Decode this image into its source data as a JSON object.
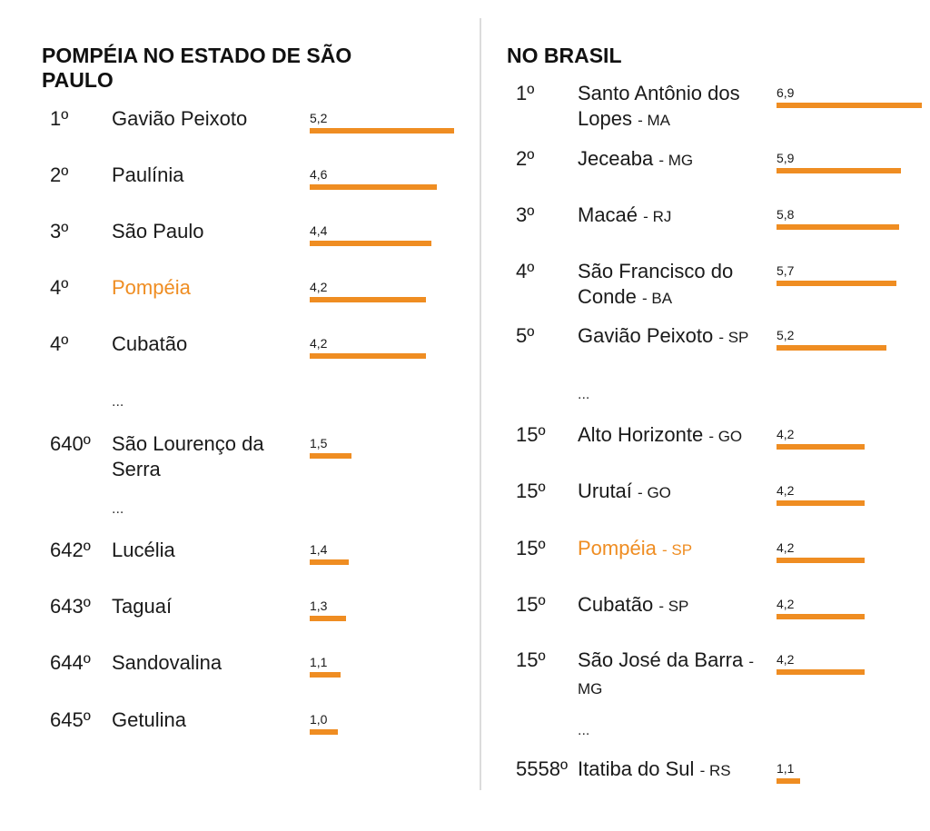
{
  "colors": {
    "bar": "#ef8d22",
    "highlight": "#ef8d22",
    "divider": "#dcdcdc"
  },
  "chart_data": [
    {
      "type": "bar",
      "title": "POMPÉIA NO ESTADO DE SÃO PAULO",
      "items": [
        {
          "rank": "1º",
          "name": "Gavião Peixoto",
          "value": 5.2,
          "label": "5,2",
          "highlight": false
        },
        {
          "rank": "2º",
          "name": "Paulínia",
          "value": 4.6,
          "label": "4,6",
          "highlight": false
        },
        {
          "rank": "3º",
          "name": "São Paulo",
          "value": 4.4,
          "label": "4,4",
          "highlight": false
        },
        {
          "rank": "4º",
          "name": "Pompéia",
          "value": 4.2,
          "label": "4,2",
          "highlight": true
        },
        {
          "rank": "4º",
          "name": "Cubatão",
          "value": 4.2,
          "label": "4,2",
          "highlight": false
        },
        {
          "separator": "..."
        },
        {
          "rank": "640º",
          "name": "São Lourenço da Serra",
          "value": 1.5,
          "label": "1,5",
          "highlight": false
        },
        {
          "separator": "..."
        },
        {
          "rank": "642º",
          "name": "Lucélia",
          "value": 1.4,
          "label": "1,4",
          "highlight": false
        },
        {
          "rank": "643º",
          "name": "Taguaí",
          "value": 1.3,
          "label": "1,3",
          "highlight": false
        },
        {
          "rank": "644º",
          "name": "Sandovalina",
          "value": 1.1,
          "label": "1,1",
          "highlight": false
        },
        {
          "rank": "645º",
          "name": "Getulina",
          "value": 1.0,
          "label": "1,0",
          "highlight": false
        }
      ]
    },
    {
      "type": "bar",
      "title": "NO BRASIL",
      "items": [
        {
          "rank": "1º",
          "name": "Santo Antônio dos Lopes",
          "state": "MA",
          "value": 6.9,
          "label": "6,9",
          "highlight": false
        },
        {
          "rank": "2º",
          "name": "Jeceaba",
          "state": "MG",
          "value": 5.9,
          "label": "5,9",
          "highlight": false
        },
        {
          "rank": "3º",
          "name": "Macaé",
          "state": "RJ",
          "value": 5.8,
          "label": "5,8",
          "highlight": false
        },
        {
          "rank": "4º",
          "name": "São Francisco do Conde",
          "state": "BA",
          "value": 5.7,
          "label": "5,7",
          "highlight": false
        },
        {
          "rank": "5º",
          "name": "Gavião Peixoto",
          "state": "SP",
          "value": 5.2,
          "label": "5,2",
          "highlight": false
        },
        {
          "separator": "..."
        },
        {
          "rank": "15º",
          "name": "Alto Horizonte",
          "state": "GO",
          "value": 4.2,
          "label": "4,2",
          "highlight": false
        },
        {
          "rank": "15º",
          "name": "Urutaí",
          "state": "GO",
          "value": 4.2,
          "label": "4,2",
          "highlight": false
        },
        {
          "rank": "15º",
          "name": "Pompéia",
          "state": "SP",
          "value": 4.2,
          "label": "4,2",
          "highlight": true
        },
        {
          "rank": "15º",
          "name": "Cubatão",
          "state": "SP",
          "value": 4.2,
          "label": "4,2",
          "highlight": false
        },
        {
          "rank": "15º",
          "name": "São José da Barra",
          "state": "MG",
          "value": 4.2,
          "label": "4,2",
          "highlight": false
        },
        {
          "separator": "..."
        },
        {
          "rank": "5558º",
          "name": "Itatiba do Sul",
          "state": "RS",
          "value": 1.1,
          "label": "1,1",
          "highlight": false
        }
      ]
    }
  ]
}
